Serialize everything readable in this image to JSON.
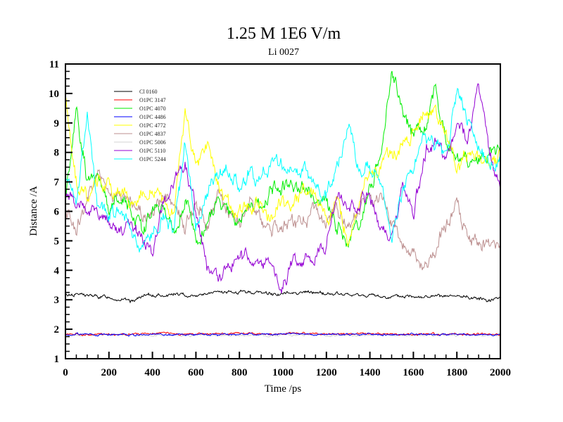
{
  "chart_data": {
    "type": "line",
    "title": "1.25 M 1E6 V/m",
    "subtitle": "Li 0027",
    "xlabel": "Time /ps",
    "ylabel": "Distance /A",
    "xlim": [
      0,
      2000
    ],
    "ylim": [
      1,
      11
    ],
    "xticks": [
      "0",
      "200",
      "400",
      "600",
      "800",
      "1000",
      "1200",
      "1400",
      "1600",
      "1800",
      "2000"
    ],
    "yticks": [
      "1",
      "2",
      "3",
      "4",
      "5",
      "6",
      "7",
      "8",
      "9",
      "10",
      "11"
    ],
    "grid": false,
    "legend_position": "top-left",
    "x": [
      0,
      50,
      100,
      150,
      200,
      250,
      300,
      350,
      400,
      450,
      500,
      550,
      600,
      650,
      700,
      750,
      800,
      850,
      900,
      950,
      1000,
      1050,
      1100,
      1150,
      1200,
      1250,
      1300,
      1350,
      1400,
      1450,
      1500,
      1550,
      1600,
      1650,
      1700,
      1750,
      1800,
      1850,
      1900,
      1950,
      2000
    ],
    "series": [
      {
        "name": "Cl 0160",
        "color": "#000000",
        "values": [
          3.15,
          3.2,
          3.15,
          3.1,
          3.1,
          3.0,
          2.95,
          3.1,
          3.15,
          3.15,
          3.2,
          3.15,
          3.15,
          3.2,
          3.25,
          3.25,
          3.25,
          3.25,
          3.25,
          3.2,
          3.2,
          3.25,
          3.25,
          3.25,
          3.2,
          3.2,
          3.15,
          3.15,
          3.15,
          3.1,
          3.1,
          3.1,
          3.15,
          3.1,
          3.1,
          3.1,
          3.1,
          3.1,
          3.05,
          3.0,
          3.1
        ]
      },
      {
        "name": "O1PC 3147",
        "color": "#ff0000",
        "values": [
          1.83,
          1.85,
          1.82,
          1.84,
          1.83,
          1.82,
          1.84,
          1.83,
          1.85,
          1.86,
          1.84,
          1.83,
          1.82,
          1.84,
          1.85,
          1.84,
          1.86,
          1.88,
          1.85,
          1.84,
          1.85,
          1.87,
          1.85,
          1.84,
          1.83,
          1.84,
          1.85,
          1.84,
          1.83,
          1.84,
          1.83,
          1.84,
          1.83,
          1.82,
          1.84,
          1.83,
          1.82,
          1.83,
          1.84,
          1.83,
          1.82
        ]
      },
      {
        "name": "O1PC 4070",
        "color": "#00ee00",
        "values": [
          6.5,
          9.5,
          7.0,
          7.5,
          6.2,
          6.5,
          6.0,
          5.5,
          6.0,
          6.2,
          5.3,
          6.5,
          5.0,
          5.5,
          6.5,
          6.0,
          5.5,
          6.2,
          6.3,
          6.8,
          6.9,
          6.9,
          6.8,
          6.5,
          6.3,
          5.5,
          5.0,
          5.5,
          6.8,
          8.0,
          10.8,
          9.5,
          8.5,
          8.8,
          10.2,
          8.5,
          8.0,
          7.5,
          7.7,
          8.0,
          8.0
        ]
      },
      {
        "name": "O1PC 4486",
        "color": "#0000ff",
        "values": [
          1.82,
          1.83,
          1.82,
          1.81,
          1.82,
          1.83,
          1.81,
          1.82,
          1.83,
          1.82,
          1.81,
          1.82,
          1.83,
          1.82,
          1.81,
          1.82,
          1.83,
          1.84,
          1.83,
          1.82,
          1.84,
          1.85,
          1.83,
          1.82,
          1.83,
          1.82,
          1.81,
          1.82,
          1.83,
          1.82,
          1.81,
          1.82,
          1.83,
          1.82,
          1.81,
          1.82,
          1.81,
          1.82,
          1.81,
          1.82,
          1.81
        ]
      },
      {
        "name": "O1PC 4772",
        "color": "#ffff00",
        "values": [
          10.0,
          7.0,
          6.5,
          7.0,
          6.8,
          6.8,
          6.2,
          6.5,
          6.8,
          6.3,
          6.0,
          9.5,
          7.5,
          8.3,
          6.8,
          6.3,
          6.0,
          6.3,
          6.2,
          5.7,
          6.5,
          6.2,
          6.8,
          6.7,
          5.5,
          6.5,
          5.0,
          6.5,
          7.3,
          7.5,
          8.0,
          8.2,
          8.7,
          9.5,
          9.2,
          8.5,
          7.5,
          8.0,
          7.8,
          7.5,
          7.8
        ]
      },
      {
        "name": "O1PC 4837",
        "color": "#bc8f8f",
        "values": [
          6.0,
          5.5,
          6.2,
          7.5,
          6.8,
          6.3,
          6.5,
          5.8,
          6.0,
          6.5,
          6.2,
          5.5,
          6.5,
          5.5,
          6.5,
          6.0,
          5.6,
          6.2,
          5.8,
          5.5,
          5.6,
          5.6,
          5.8,
          6.0,
          5.4,
          6.0,
          5.5,
          6.2,
          6.5,
          6.3,
          5.6,
          5.0,
          4.5,
          3.9,
          4.6,
          5.5,
          6.3,
          5.0,
          4.8,
          5.0,
          4.9
        ]
      },
      {
        "name": "O1PC 5006",
        "color": "#d3d3d3",
        "values": [
          1.8,
          1.8,
          1.8,
          1.8,
          1.8,
          1.8,
          1.8,
          1.8,
          1.8,
          1.8,
          1.8,
          1.8,
          1.8,
          1.8,
          1.8,
          1.8,
          1.8,
          1.8,
          1.8,
          1.8,
          1.8,
          1.8,
          1.8,
          1.8,
          1.8,
          1.8,
          1.8,
          1.8,
          1.8,
          1.8,
          1.8,
          1.8,
          1.8,
          1.8,
          1.8,
          1.8,
          1.8,
          1.8,
          1.8,
          1.8,
          1.8
        ]
      },
      {
        "name": "O1PC 5110",
        "color": "#9400d3",
        "values": [
          6.6,
          6.3,
          6.1,
          6.0,
          5.7,
          5.2,
          5.5,
          5.2,
          4.5,
          6.3,
          7.0,
          7.5,
          6.0,
          4.2,
          3.7,
          4.2,
          4.3,
          4.6,
          4.3,
          4.2,
          3.4,
          4.3,
          4.2,
          4.5,
          5.0,
          6.8,
          6.0,
          6.3,
          6.5,
          5.5,
          5.0,
          6.8,
          6.0,
          8.0,
          8.4,
          7.8,
          9.0,
          8.5,
          10.2,
          8.0,
          6.6
        ]
      },
      {
        "name": "O1PC 5244",
        "color": "#00ffff",
        "values": [
          7.2,
          6.3,
          9.3,
          6.0,
          5.8,
          6.0,
          5.5,
          4.7,
          5.2,
          5.8,
          5.5,
          8.3,
          5.5,
          6.5,
          7.2,
          7.5,
          6.8,
          7.3,
          7.0,
          7.8,
          7.5,
          7.5,
          7.5,
          7.0,
          6.5,
          7.5,
          9.0,
          7.5,
          7.5,
          7.0,
          5.2,
          6.8,
          7.5,
          8.5,
          8.3,
          7.8,
          10.0,
          9.0,
          8.3,
          7.5,
          7.8
        ]
      }
    ]
  }
}
